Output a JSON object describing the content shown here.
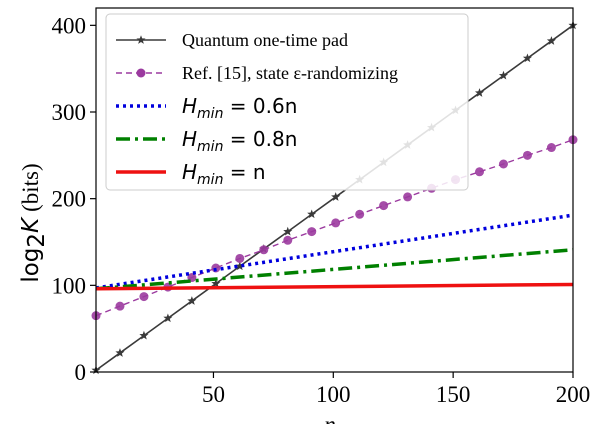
{
  "chart_data": {
    "type": "line",
    "xlabel": "n",
    "ylabel_main": "log",
    "ylabel_sub": "2",
    "ylabel_var": "K",
    "ylabel_unit": "(bits)",
    "xlim": [
      1,
      200
    ],
    "ylim": [
      0,
      420
    ],
    "xticks": [
      50,
      100,
      150,
      200
    ],
    "yticks": [
      0,
      100,
      200,
      300,
      400
    ],
    "grid": false,
    "legend_position": "top-left",
    "series": [
      {
        "name": "Quantum one-time pad",
        "color": "#3a3a3a",
        "style": "solid-star",
        "x": [
          1,
          11,
          21,
          31,
          41,
          51,
          61,
          71,
          81,
          91,
          101,
          111,
          121,
          131,
          141,
          151,
          161,
          171,
          181,
          191,
          200
        ],
        "y": [
          2,
          22,
          42,
          62,
          82,
          102,
          122,
          142,
          162,
          182,
          202,
          222,
          242,
          262,
          282,
          302,
          322,
          342,
          362,
          382,
          400
        ]
      },
      {
        "name": "Ref. [15], state ε-randomizing",
        "color": "#9b3a9f",
        "style": "dashed-circle",
        "x": [
          1,
          11,
          21,
          31,
          41,
          51,
          61,
          71,
          81,
          91,
          101,
          111,
          121,
          131,
          141,
          151,
          161,
          171,
          181,
          191,
          200
        ],
        "y": [
          65,
          76,
          87,
          98,
          109,
          120,
          131,
          141,
          152,
          162,
          172,
          182,
          192,
          202,
          212,
          222,
          231,
          240,
          250,
          259,
          268
        ]
      },
      {
        "name": "H_min = 0.6n",
        "color": "#0000dd",
        "style": "dotted",
        "x": [
          1,
          200
        ],
        "y": [
          97,
          181
        ]
      },
      {
        "name": "H_min = 0.8n",
        "color": "#008000",
        "style": "dashdot",
        "x": [
          1,
          200
        ],
        "y": [
          96,
          141
        ]
      },
      {
        "name": "H_min = n",
        "color": "#ee1111",
        "style": "solid",
        "x": [
          1,
          200
        ],
        "y": [
          96,
          101
        ]
      }
    ],
    "legend": [
      {
        "kind": "text",
        "text": "Quantum one-time pad"
      },
      {
        "kind": "text",
        "text": "Ref. [15], state ε-randomizing"
      },
      {
        "kind": "math",
        "main": "H",
        "sub": "min",
        "rest": " = 0.6n"
      },
      {
        "kind": "math",
        "main": "H",
        "sub": "min",
        "rest": " = 0.8n"
      },
      {
        "kind": "math",
        "main": "H",
        "sub": "min",
        "rest": " = n"
      }
    ]
  }
}
